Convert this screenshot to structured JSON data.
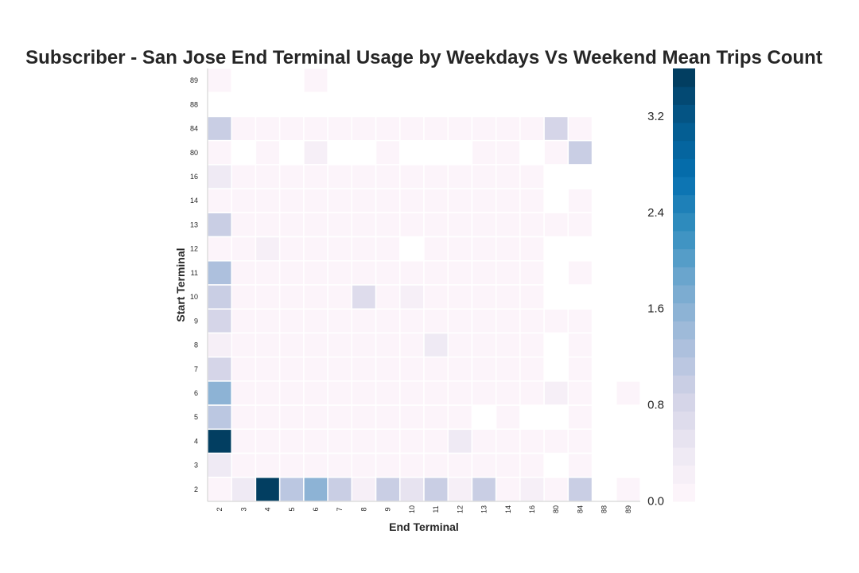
{
  "chart_data": {
    "type": "heatmap",
    "title": "Subscriber - San Jose End Terminal Usage by Weekdays Vs Weekend Mean Trips Count",
    "xlabel": "End Terminal",
    "ylabel": "Start Terminal",
    "x_categories": [
      "2",
      "3",
      "4",
      "5",
      "6",
      "7",
      "8",
      "9",
      "10",
      "11",
      "12",
      "13",
      "14",
      "16",
      "80",
      "84",
      "88",
      "89"
    ],
    "y_categories": [
      "89",
      "88",
      "84",
      "80",
      "16",
      "14",
      "13",
      "12",
      "11",
      "10",
      "9",
      "8",
      "7",
      "6",
      "5",
      "4",
      "3",
      "2"
    ],
    "colorbar": {
      "ticks": [
        0.0,
        0.8,
        1.6,
        2.4,
        3.2
      ],
      "tick_labels": [
        "0.0",
        "0.8",
        "1.6",
        "2.4",
        "3.2"
      ],
      "range": [
        0,
        3.6
      ],
      "levels": 24
    },
    "colors": {
      "low": "#fff7fb",
      "high": "#023858"
    },
    "values": [
      [
        0.05,
        null,
        null,
        null,
        0.05,
        null,
        null,
        null,
        null,
        null,
        null,
        null,
        null,
        null,
        null,
        null,
        null,
        null
      ],
      [
        null,
        null,
        null,
        null,
        null,
        null,
        null,
        null,
        null,
        null,
        null,
        null,
        null,
        null,
        null,
        null,
        null,
        null
      ],
      [
        0.9,
        0.07,
        0.07,
        0.07,
        0.07,
        0.07,
        0.07,
        0.07,
        0.07,
        0.07,
        0.07,
        0.07,
        0.07,
        0.07,
        0.8,
        0.07,
        null,
        null
      ],
      [
        0.07,
        null,
        0.12,
        null,
        0.2,
        null,
        null,
        0.1,
        null,
        null,
        null,
        0.1,
        0.1,
        null,
        0.07,
        0.9,
        null,
        null
      ],
      [
        0.35,
        0.07,
        0.07,
        0.07,
        0.07,
        0.07,
        0.07,
        0.07,
        0.07,
        0.07,
        0.07,
        0.07,
        0.07,
        0.07,
        null,
        null,
        null,
        null
      ],
      [
        0.07,
        0.07,
        0.07,
        0.07,
        0.07,
        0.07,
        0.07,
        0.07,
        0.07,
        0.07,
        0.07,
        0.07,
        0.07,
        0.07,
        null,
        0.07,
        null,
        null
      ],
      [
        0.9,
        0.07,
        0.07,
        0.07,
        0.07,
        0.07,
        0.07,
        0.07,
        0.07,
        0.07,
        0.07,
        0.07,
        0.07,
        0.07,
        0.07,
        0.07,
        null,
        null
      ],
      [
        0.05,
        0.07,
        0.25,
        0.07,
        0.07,
        0.07,
        0.07,
        0.07,
        null,
        0.07,
        0.07,
        0.07,
        0.07,
        0.07,
        null,
        null,
        null,
        null
      ],
      [
        1.3,
        0.07,
        0.07,
        0.07,
        0.07,
        0.07,
        0.07,
        0.07,
        0.07,
        0.07,
        0.07,
        0.07,
        0.07,
        0.07,
        null,
        0.07,
        null,
        null
      ],
      [
        1.0,
        0.07,
        0.07,
        0.07,
        0.07,
        0.07,
        0.6,
        0.07,
        0.2,
        0.07,
        0.07,
        0.07,
        0.07,
        0.07,
        null,
        null,
        null,
        null
      ],
      [
        0.75,
        0.07,
        0.07,
        0.07,
        0.07,
        0.07,
        0.07,
        0.07,
        0.07,
        0.07,
        0.07,
        0.07,
        0.07,
        0.07,
        0.1,
        0.07,
        null,
        null
      ],
      [
        0.25,
        0.07,
        0.07,
        0.07,
        0.07,
        0.07,
        0.07,
        0.07,
        0.07,
        0.4,
        0.07,
        0.07,
        0.07,
        0.07,
        null,
        0.07,
        null,
        null
      ],
      [
        0.75,
        0.07,
        0.07,
        0.07,
        0.07,
        0.07,
        0.07,
        0.07,
        0.07,
        0.07,
        0.07,
        0.07,
        0.07,
        0.07,
        null,
        0.07,
        null,
        null
      ],
      [
        1.6,
        0.07,
        0.07,
        0.07,
        0.07,
        0.07,
        0.07,
        0.07,
        0.07,
        0.07,
        0.07,
        0.07,
        0.07,
        0.07,
        0.2,
        0.07,
        null,
        0.07
      ],
      [
        1.15,
        0.07,
        0.07,
        0.07,
        0.07,
        0.07,
        0.07,
        0.07,
        0.07,
        0.07,
        0.07,
        null,
        0.07,
        null,
        null,
        0.07,
        null,
        null
      ],
      [
        3.55,
        0.07,
        0.07,
        0.07,
        0.07,
        0.07,
        0.07,
        0.07,
        0.07,
        0.07,
        0.3,
        0.07,
        0.07,
        0.07,
        0.07,
        0.07,
        null,
        null
      ],
      [
        0.35,
        0.07,
        0.07,
        0.07,
        0.07,
        0.07,
        0.07,
        0.07,
        0.07,
        0.07,
        0.07,
        0.07,
        0.07,
        0.07,
        null,
        0.07,
        null,
        null
      ],
      [
        0.07,
        0.35,
        3.6,
        1.15,
        1.6,
        1.0,
        0.15,
        0.9,
        0.55,
        1.0,
        0.2,
        0.9,
        0.1,
        0.2,
        0.07,
        0.9,
        null,
        0.07
      ]
    ]
  }
}
